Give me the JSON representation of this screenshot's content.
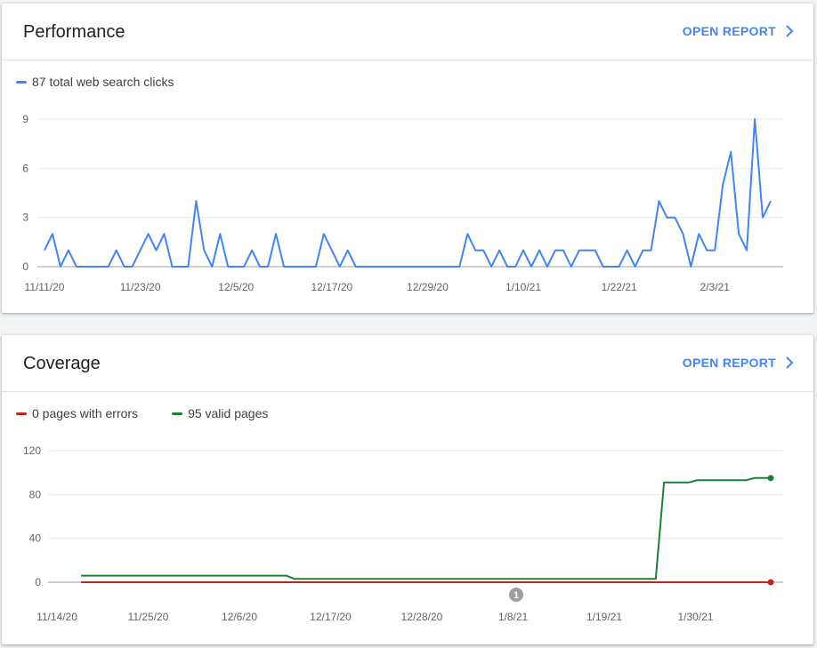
{
  "performance": {
    "title": "Performance",
    "open_report_label": "OPEN REPORT",
    "chevron_icon": "chevron-right-icon",
    "legend": [
      {
        "label": "87 total web search clicks",
        "color": "#4285f4"
      }
    ],
    "chart_data": {
      "type": "line",
      "title": "",
      "xlabel": "",
      "ylabel": "",
      "ylim": [
        0,
        9
      ],
      "y_ticks": [
        "0",
        "3",
        "6",
        "9"
      ],
      "x_ticks": [
        "11/11/20",
        "11/23/20",
        "12/5/20",
        "12/17/20",
        "12/29/20",
        "1/10/21",
        "1/22/21",
        "2/3/21"
      ],
      "x_start": "11/11/20",
      "grid": true,
      "series": [
        {
          "name": "87 total web search clicks",
          "color": "#4285f4",
          "values": [
            1,
            2,
            0,
            1,
            0,
            0,
            0,
            0,
            0,
            1,
            0,
            0,
            1,
            2,
            1,
            2,
            0,
            0,
            0,
            4,
            1,
            0,
            2,
            0,
            0,
            0,
            1,
            0,
            0,
            2,
            0,
            0,
            0,
            0,
            0,
            2,
            1,
            0,
            1,
            0,
            0,
            0,
            0,
            0,
            0,
            0,
            0,
            0,
            0,
            0,
            0,
            0,
            0,
            2,
            1,
            1,
            0,
            1,
            0,
            0,
            1,
            0,
            1,
            0,
            1,
            1,
            0,
            1,
            1,
            1,
            0,
            0,
            0,
            1,
            0,
            1,
            1,
            4,
            3,
            3,
            2,
            0,
            2,
            1,
            1,
            5,
            7,
            2,
            1,
            9,
            3,
            4
          ]
        }
      ]
    }
  },
  "coverage": {
    "title": "Coverage",
    "open_report_label": "OPEN REPORT",
    "chevron_icon": "chevron-right-icon",
    "legend": [
      {
        "label": "0 pages with errors",
        "color": "#c5221f"
      },
      {
        "label": "95 valid pages",
        "color": "#188038"
      }
    ],
    "annotation_label": "1",
    "chart_data": {
      "type": "line",
      "title": "",
      "xlabel": "",
      "ylabel": "",
      "ylim": [
        0,
        120
      ],
      "y_ticks": [
        "0",
        "40",
        "80",
        "120"
      ],
      "x_ticks": [
        "11/14/20",
        "11/25/20",
        "12/6/20",
        "12/17/20",
        "12/28/20",
        "1/8/21",
        "1/19/21",
        "1/30/21"
      ],
      "x_start": "11/14/20",
      "grid": true,
      "series": [
        {
          "name": "0 pages with errors",
          "color": "#c5221f",
          "x_days": [
            0,
            84
          ],
          "values": [
            0,
            0
          ]
        },
        {
          "name": "95 valid pages",
          "color": "#188038",
          "x_days": [
            0,
            25,
            26,
            70,
            71,
            74,
            75,
            78,
            81,
            82,
            84
          ],
          "values": [
            6,
            6,
            3,
            3,
            91,
            91,
            93,
            93,
            93,
            95,
            95
          ]
        }
      ]
    }
  }
}
